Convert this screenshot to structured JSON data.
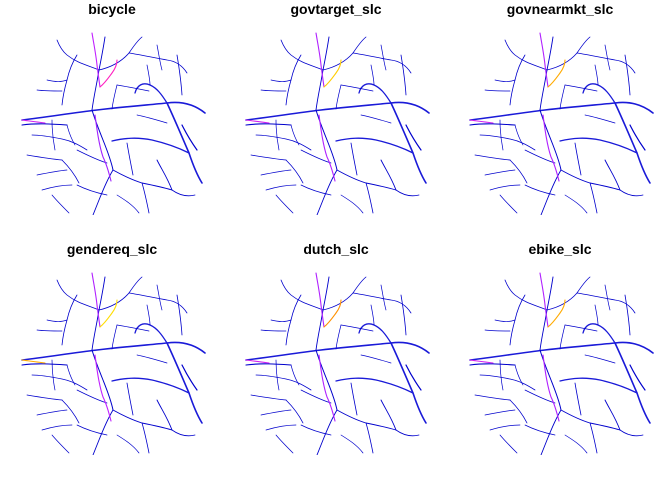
{
  "figure": {
    "panels": [
      {
        "title": "bicycle",
        "accent_routes": [
          {
            "route": "north-spur",
            "color": "#c020ff"
          },
          {
            "route": "north-loop",
            "color": "#ff20c0"
          },
          {
            "route": "south-spine",
            "color": "#a020ff"
          },
          {
            "route": "west-arm",
            "color": "#d020f0"
          }
        ]
      },
      {
        "title": "govtarget_slc",
        "accent_routes": [
          {
            "route": "north-spur",
            "color": "#b020ff"
          },
          {
            "route": "north-loop",
            "color": "#ffcc00"
          },
          {
            "route": "south-spine",
            "color": "#b020ff"
          },
          {
            "route": "west-arm",
            "color": "#d020f0"
          }
        ]
      },
      {
        "title": "govnearmkt_slc",
        "accent_routes": [
          {
            "route": "north-spur",
            "color": "#b020ff"
          },
          {
            "route": "north-loop",
            "color": "#ffaa00"
          },
          {
            "route": "south-spine",
            "color": "#b020ff"
          },
          {
            "route": "west-arm",
            "color": "#d020f0"
          }
        ]
      },
      {
        "title": "gendereq_slc",
        "accent_routes": [
          {
            "route": "north-spur",
            "color": "#b020ff"
          },
          {
            "route": "north-loop",
            "color": "#ffdd00"
          },
          {
            "route": "south-spine",
            "color": "#c020ff"
          },
          {
            "route": "west-arm",
            "color": "#ffaa00"
          }
        ]
      },
      {
        "title": "dutch_slc",
        "accent_routes": [
          {
            "route": "north-spur",
            "color": "#b020ff"
          },
          {
            "route": "north-loop",
            "color": "#ff9000"
          },
          {
            "route": "south-spine",
            "color": "#b020ff"
          },
          {
            "route": "west-arm",
            "color": "#d020f0"
          }
        ]
      },
      {
        "title": "ebike_slc",
        "accent_routes": [
          {
            "route": "north-spur",
            "color": "#b020ff"
          },
          {
            "route": "north-loop",
            "color": "#ffaa00"
          },
          {
            "route": "south-spine",
            "color": "#b020ff"
          },
          {
            "route": "west-arm",
            "color": "#d020f0"
          }
        ]
      }
    ],
    "base_network_color": "#0000cc",
    "main_road_color": "#1a1ad8"
  }
}
